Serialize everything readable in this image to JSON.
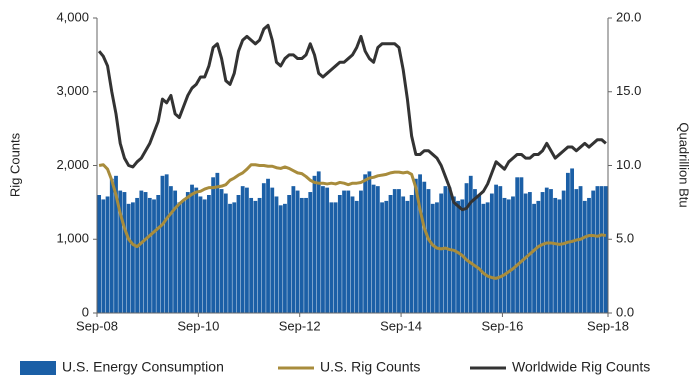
{
  "chart_data": {
    "type": "combo",
    "y_label": "Rig Counts",
    "y2_label": "Quadrillion Btu",
    "categories": [
      "Sep-08",
      null,
      null,
      null,
      null,
      null,
      null,
      null,
      null,
      null,
      null,
      null,
      null,
      null,
      null,
      null,
      null,
      null,
      null,
      null,
      null,
      null,
      null,
      null,
      "Sep-10",
      null,
      null,
      null,
      null,
      null,
      null,
      null,
      null,
      null,
      null,
      null,
      null,
      null,
      null,
      null,
      null,
      null,
      null,
      null,
      null,
      null,
      null,
      null,
      "Sep-12",
      null,
      null,
      null,
      null,
      null,
      null,
      null,
      null,
      null,
      null,
      null,
      null,
      null,
      null,
      null,
      null,
      null,
      null,
      null,
      null,
      null,
      null,
      null,
      "Sep-14",
      null,
      null,
      null,
      null,
      null,
      null,
      null,
      null,
      null,
      null,
      null,
      null,
      null,
      null,
      null,
      null,
      null,
      null,
      null,
      null,
      null,
      null,
      null,
      "Sep-16",
      null,
      null,
      null,
      null,
      null,
      null,
      null,
      null,
      null,
      null,
      null,
      null,
      null,
      null,
      null,
      null,
      null,
      null,
      null,
      null,
      null,
      null,
      null,
      "Sep-18"
    ],
    "ylim": [
      0,
      4000
    ],
    "yticks": [
      0,
      {
        "value": 1000,
        "label": "1,000"
      },
      {
        "value": 2000,
        "label": "2,000"
      },
      {
        "value": 3000,
        "label": "3,000"
      },
      {
        "value": 4000,
        "label": "4,000"
      }
    ],
    "y2lim": [
      0,
      20
    ],
    "y2ticks": [
      {
        "value": 0,
        "label": "0.0"
      },
      {
        "value": 5,
        "label": "5.0"
      },
      {
        "value": 10,
        "label": "10.0"
      },
      {
        "value": 15,
        "label": "15.0"
      },
      {
        "value": 20,
        "label": "20.0"
      }
    ],
    "legend": "bottom",
    "series": [
      {
        "name": "U.S. Energy Consumption",
        "type": "bar",
        "axis": "y2",
        "color": "#1b5fa6",
        "values": [
          8.0,
          7.7,
          7.9,
          9.1,
          9.3,
          8.3,
          8.2,
          7.4,
          7.5,
          7.8,
          8.3,
          8.2,
          7.8,
          7.7,
          8.0,
          9.3,
          9.4,
          8.6,
          8.3,
          7.5,
          7.6,
          8.2,
          8.7,
          8.5,
          7.9,
          7.7,
          8.0,
          9.2,
          9.5,
          8.4,
          8.1,
          7.4,
          7.5,
          8.0,
          8.6,
          8.5,
          7.8,
          7.6,
          7.8,
          8.8,
          9.1,
          8.5,
          7.9,
          7.3,
          7.4,
          8.0,
          8.6,
          8.3,
          7.8,
          7.8,
          8.2,
          9.3,
          9.6,
          8.6,
          8.5,
          7.5,
          7.5,
          8.0,
          8.3,
          8.3,
          7.9,
          7.6,
          8.3,
          9.4,
          9.6,
          8.7,
          8.6,
          7.5,
          7.6,
          8.0,
          8.4,
          8.4,
          7.9,
          7.6,
          8.0,
          9.1,
          9.4,
          8.9,
          8.4,
          7.4,
          7.5,
          8.1,
          8.6,
          8.5,
          7.9,
          7.6,
          7.7,
          8.8,
          9.3,
          8.4,
          8.0,
          7.4,
          7.5,
          8.1,
          8.7,
          8.6,
          7.8,
          7.7,
          7.9,
          9.2,
          9.2,
          8.1,
          8.2,
          7.4,
          7.6,
          8.2,
          8.5,
          8.4,
          7.8,
          7.7,
          8.3,
          9.5,
          9.8,
          8.4,
          8.6,
          7.6,
          7.8,
          8.3,
          8.6,
          8.6,
          8.6
        ]
      },
      {
        "name": "U.S. Rig Counts",
        "type": "line",
        "color": "#a88c3c",
        "values": [
          2000,
          2010,
          1950,
          1800,
          1600,
          1350,
          1150,
          1000,
          930,
          900,
          950,
          1000,
          1050,
          1100,
          1150,
          1200,
          1280,
          1350,
          1420,
          1480,
          1530,
          1570,
          1610,
          1640,
          1650,
          1680,
          1700,
          1700,
          1710,
          1720,
          1740,
          1800,
          1830,
          1870,
          1900,
          1950,
          2010,
          2010,
          2000,
          2000,
          1990,
          1990,
          1970,
          1960,
          1980,
          1960,
          1930,
          1900,
          1890,
          1850,
          1800,
          1770,
          1760,
          1760,
          1750,
          1760,
          1750,
          1770,
          1760,
          1740,
          1760,
          1760,
          1770,
          1800,
          1830,
          1840,
          1860,
          1870,
          1880,
          1900,
          1910,
          1910,
          1900,
          1910,
          1880,
          1700,
          1400,
          1150,
          1000,
          920,
          880,
          870,
          880,
          860,
          850,
          820,
          780,
          720,
          680,
          640,
          600,
          540,
          500,
          480,
          470,
          490,
          520,
          560,
          600,
          650,
          700,
          750,
          800,
          850,
          900,
          930,
          950,
          950,
          940,
          930,
          940,
          960,
          970,
          990,
          1000,
          1030,
          1050,
          1050,
          1040,
          1060,
          1050
        ]
      },
      {
        "name": "Worldwide Rig Counts",
        "type": "line",
        "color": "#333333",
        "values": [
          3550,
          3480,
          3350,
          3000,
          2700,
          2300,
          2100,
          2000,
          1980,
          2050,
          2100,
          2200,
          2300,
          2450,
          2600,
          2900,
          2850,
          2950,
          2700,
          2650,
          2800,
          2950,
          3050,
          3100,
          3200,
          3200,
          3350,
          3600,
          3650,
          3450,
          3150,
          3100,
          3250,
          3550,
          3700,
          3750,
          3700,
          3650,
          3700,
          3850,
          3900,
          3700,
          3400,
          3350,
          3450,
          3500,
          3500,
          3450,
          3450,
          3500,
          3650,
          3500,
          3250,
          3200,
          3250,
          3300,
          3350,
          3400,
          3400,
          3450,
          3500,
          3600,
          3750,
          3550,
          3450,
          3400,
          3600,
          3650,
          3650,
          3650,
          3650,
          3600,
          3300,
          2900,
          2400,
          2150,
          2150,
          2200,
          2200,
          2150,
          2100,
          2000,
          1850,
          1700,
          1500,
          1450,
          1400,
          1420,
          1500,
          1550,
          1600,
          1650,
          1750,
          1900,
          2050,
          2000,
          1950,
          2050,
          2100,
          2150,
          2150,
          2100,
          2100,
          2150,
          2150,
          2200,
          2300,
          2200,
          2100,
          2150,
          2200,
          2250,
          2250,
          2200,
          2250,
          2300,
          2250,
          2300,
          2350,
          2350,
          2300
        ]
      }
    ]
  }
}
